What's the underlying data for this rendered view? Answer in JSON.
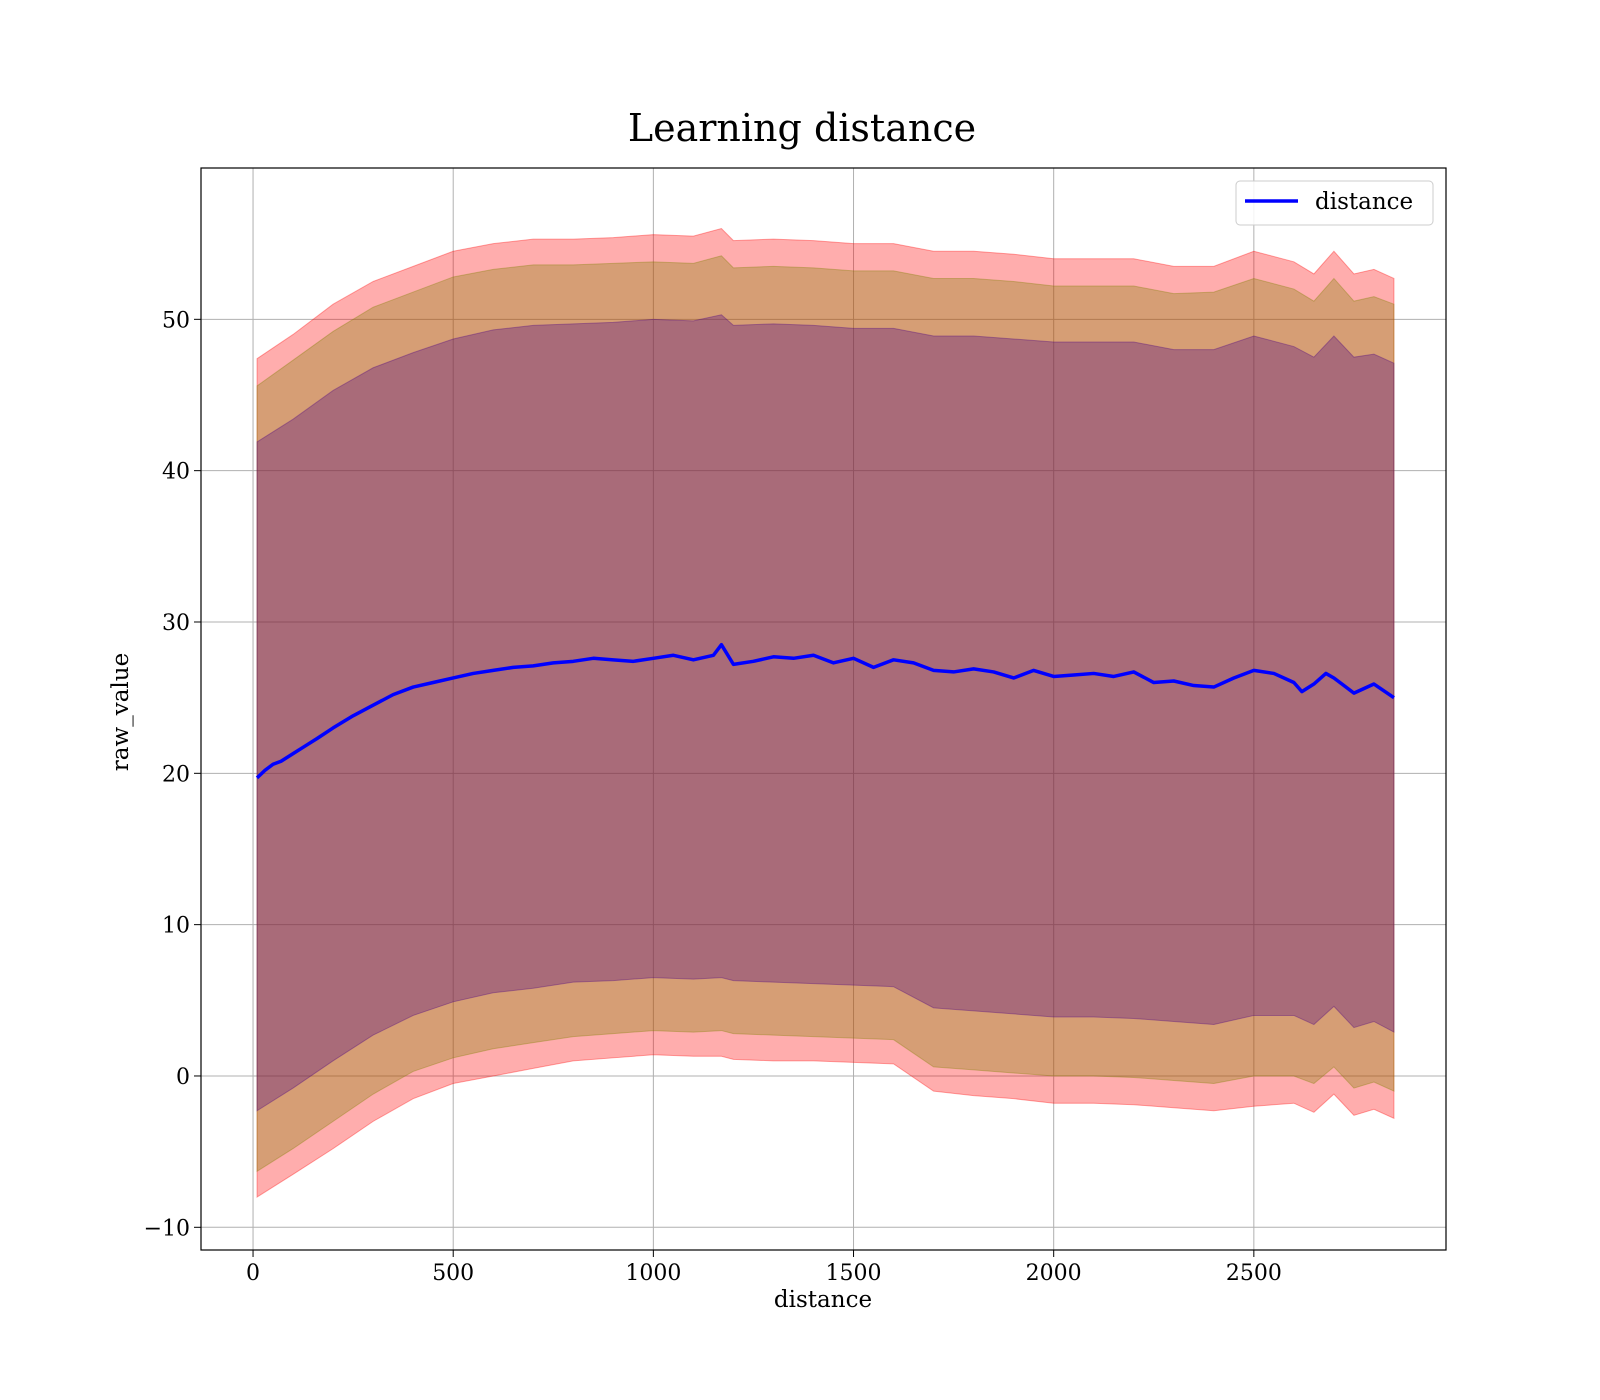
{
  "chart_data": {
    "type": "line",
    "title": "Learning distance",
    "xlabel": "distance",
    "ylabel": "raw_value",
    "xlim": [
      -130,
      2980
    ],
    "ylim": [
      -11.5,
      60
    ],
    "x_ticks": [
      0,
      500,
      1000,
      1500,
      2000,
      2500
    ],
    "x_tick_labels": [
      "0",
      "500",
      "1000",
      "1500",
      "2000",
      "2500"
    ],
    "y_ticks": [
      -10,
      0,
      10,
      20,
      30,
      40,
      50
    ],
    "y_tick_labels": [
      "−10",
      "0",
      "10",
      "20",
      "30",
      "40",
      "50"
    ],
    "grid": true,
    "legend": {
      "position": "top-right",
      "entries": [
        "distance"
      ]
    },
    "colors": {
      "line": "#0000ff",
      "band_outer": "#ff0000",
      "band_middle": "#808000",
      "band_inner": "#4b0082",
      "grid": "#b0b0b0"
    },
    "series": [
      {
        "name": "distance",
        "x": [
          10,
          30,
          50,
          70,
          100,
          130,
          160,
          200,
          250,
          300,
          350,
          400,
          450,
          500,
          550,
          600,
          650,
          700,
          750,
          800,
          850,
          900,
          950,
          1000,
          1050,
          1100,
          1150,
          1170,
          1200,
          1250,
          1300,
          1350,
          1400,
          1450,
          1500,
          1550,
          1600,
          1650,
          1700,
          1750,
          1800,
          1850,
          1900,
          1950,
          2000,
          2050,
          2100,
          2150,
          2200,
          2250,
          2300,
          2350,
          2400,
          2450,
          2500,
          2550,
          2600,
          2620,
          2650,
          2680,
          2700,
          2720,
          2750,
          2800,
          2850
        ],
        "y": [
          19.7,
          20.2,
          20.6,
          20.8,
          21.3,
          21.8,
          22.3,
          23.0,
          23.8,
          24.5,
          25.2,
          25.7,
          26.0,
          26.3,
          26.6,
          26.8,
          27.0,
          27.1,
          27.3,
          27.4,
          27.6,
          27.5,
          27.4,
          27.6,
          27.8,
          27.5,
          27.8,
          28.5,
          27.2,
          27.4,
          27.7,
          27.6,
          27.8,
          27.3,
          27.6,
          27.0,
          27.5,
          27.3,
          26.8,
          26.7,
          26.9,
          26.7,
          26.3,
          26.8,
          26.4,
          26.5,
          26.6,
          26.4,
          26.7,
          26.0,
          26.1,
          25.8,
          25.7,
          26.3,
          26.8,
          26.6,
          26.0,
          25.4,
          25.9,
          26.6,
          26.3,
          25.9,
          25.3,
          25.9,
          25.0
        ]
      }
    ],
    "bands": [
      {
        "x": [
          10,
          100,
          200,
          300,
          400,
          500,
          600,
          700,
          800,
          900,
          1000,
          1100,
          1170,
          1200,
          1300,
          1400,
          1500,
          1600,
          1700,
          1800,
          1900,
          2000,
          2100,
          2200,
          2300,
          2400,
          2500,
          2600,
          2650,
          2700,
          2750,
          2800,
          2850
        ],
        "lower": [
          -8.0,
          -6.5,
          -4.8,
          -3.0,
          -1.5,
          -0.5,
          0.0,
          0.5,
          1.0,
          1.2,
          1.4,
          1.3,
          1.3,
          1.1,
          1.0,
          1.0,
          0.9,
          0.8,
          -1.0,
          -1.3,
          -1.5,
          -1.8,
          -1.8,
          -1.9,
          -2.1,
          -2.3,
          -2.0,
          -1.8,
          -2.4,
          -1.2,
          -2.6,
          -2.2,
          -2.8
        ],
        "upper": [
          47.4,
          49.0,
          51.0,
          52.5,
          53.5,
          54.5,
          55.0,
          55.3,
          55.3,
          55.4,
          55.6,
          55.5,
          56.0,
          55.2,
          55.3,
          55.2,
          55.0,
          55.0,
          54.5,
          54.5,
          54.3,
          54.0,
          54.0,
          54.0,
          53.5,
          53.5,
          54.5,
          53.8,
          53.0,
          54.5,
          53.0,
          53.3,
          52.7
        ]
      },
      {
        "x": [
          10,
          100,
          200,
          300,
          400,
          500,
          600,
          700,
          800,
          900,
          1000,
          1100,
          1170,
          1200,
          1300,
          1400,
          1500,
          1600,
          1700,
          1800,
          1900,
          2000,
          2100,
          2200,
          2300,
          2400,
          2500,
          2600,
          2650,
          2700,
          2750,
          2800,
          2850
        ],
        "lower": [
          -6.3,
          -4.8,
          -3.0,
          -1.2,
          0.3,
          1.2,
          1.8,
          2.2,
          2.6,
          2.8,
          3.0,
          2.9,
          3.0,
          2.8,
          2.7,
          2.6,
          2.5,
          2.4,
          0.6,
          0.4,
          0.2,
          0.0,
          0.0,
          -0.1,
          -0.3,
          -0.5,
          0.0,
          0.0,
          -0.5,
          0.6,
          -0.8,
          -0.4,
          -1.0
        ],
        "upper": [
          45.6,
          47.3,
          49.2,
          50.8,
          51.8,
          52.8,
          53.3,
          53.6,
          53.6,
          53.7,
          53.8,
          53.7,
          54.2,
          53.4,
          53.5,
          53.4,
          53.2,
          53.2,
          52.7,
          52.7,
          52.5,
          52.2,
          52.2,
          52.2,
          51.7,
          51.8,
          52.7,
          52.0,
          51.2,
          52.7,
          51.2,
          51.5,
          51.0
        ]
      },
      {
        "x": [
          10,
          100,
          200,
          300,
          400,
          500,
          600,
          700,
          800,
          900,
          1000,
          1100,
          1170,
          1200,
          1300,
          1400,
          1500,
          1600,
          1700,
          1800,
          1900,
          2000,
          2100,
          2200,
          2300,
          2400,
          2500,
          2600,
          2650,
          2700,
          2750,
          2800,
          2850
        ],
        "lower": [
          -2.3,
          -0.8,
          1.0,
          2.7,
          4.0,
          4.9,
          5.5,
          5.8,
          6.2,
          6.3,
          6.5,
          6.4,
          6.5,
          6.3,
          6.2,
          6.1,
          6.0,
          5.9,
          4.5,
          4.3,
          4.1,
          3.9,
          3.9,
          3.8,
          3.6,
          3.4,
          4.0,
          4.0,
          3.4,
          4.6,
          3.2,
          3.6,
          2.9
        ],
        "upper": [
          41.9,
          43.4,
          45.3,
          46.8,
          47.8,
          48.7,
          49.3,
          49.6,
          49.7,
          49.8,
          50.0,
          49.9,
          50.3,
          49.6,
          49.7,
          49.6,
          49.4,
          49.4,
          48.9,
          48.9,
          48.7,
          48.5,
          48.5,
          48.5,
          48.0,
          48.0,
          48.9,
          48.2,
          47.5,
          48.9,
          47.5,
          47.7,
          47.1
        ]
      }
    ]
  }
}
